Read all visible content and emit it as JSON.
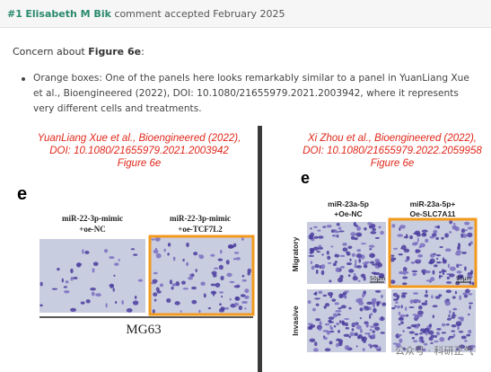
{
  "header": {
    "number": "#1",
    "author": "Elisabeth M Bik",
    "status": "comment accepted February 2025"
  },
  "concern": {
    "prefix": "Concern about ",
    "figure": "Figure 6e",
    "suffix": ":"
  },
  "bullet": "Orange boxes: One of the panels here looks remarkably similar to a panel in YuanLiang Xue et al., Bioengineered (2022), DOI: 10.1080/21655979.2021.2003942, where it represents very different cells and treatments.",
  "left_panel": {
    "caption": [
      "YuanLiang Xue et al., Bioengineered (2022),",
      "DOI: 10.1080/21655979.2021.2003942",
      "Figure 6e"
    ],
    "letter": "e",
    "columns": [
      [
        "miR-22-3p-mimic",
        "+oe-NC"
      ],
      [
        "miR-22-3p-mimic",
        "+oe-TCF7L2"
      ]
    ],
    "cell_line": "MG63"
  },
  "right_panel": {
    "caption": [
      "Xi Zhou et al., Bioengineered (2022),",
      "DOI: 10.1080/21655979.2022.2059958",
      "Figure 6e"
    ],
    "letter": "e",
    "columns": [
      [
        "miR-23a-5p",
        "+Oe-NC"
      ],
      [
        "miR-23a-5p+",
        "Oe-SLC7A11"
      ]
    ],
    "rows": [
      "Migratory",
      "Invasive"
    ],
    "scale_bars": [
      "50μm",
      "50μm"
    ]
  },
  "watermark": "公众号 · 科研正气"
}
